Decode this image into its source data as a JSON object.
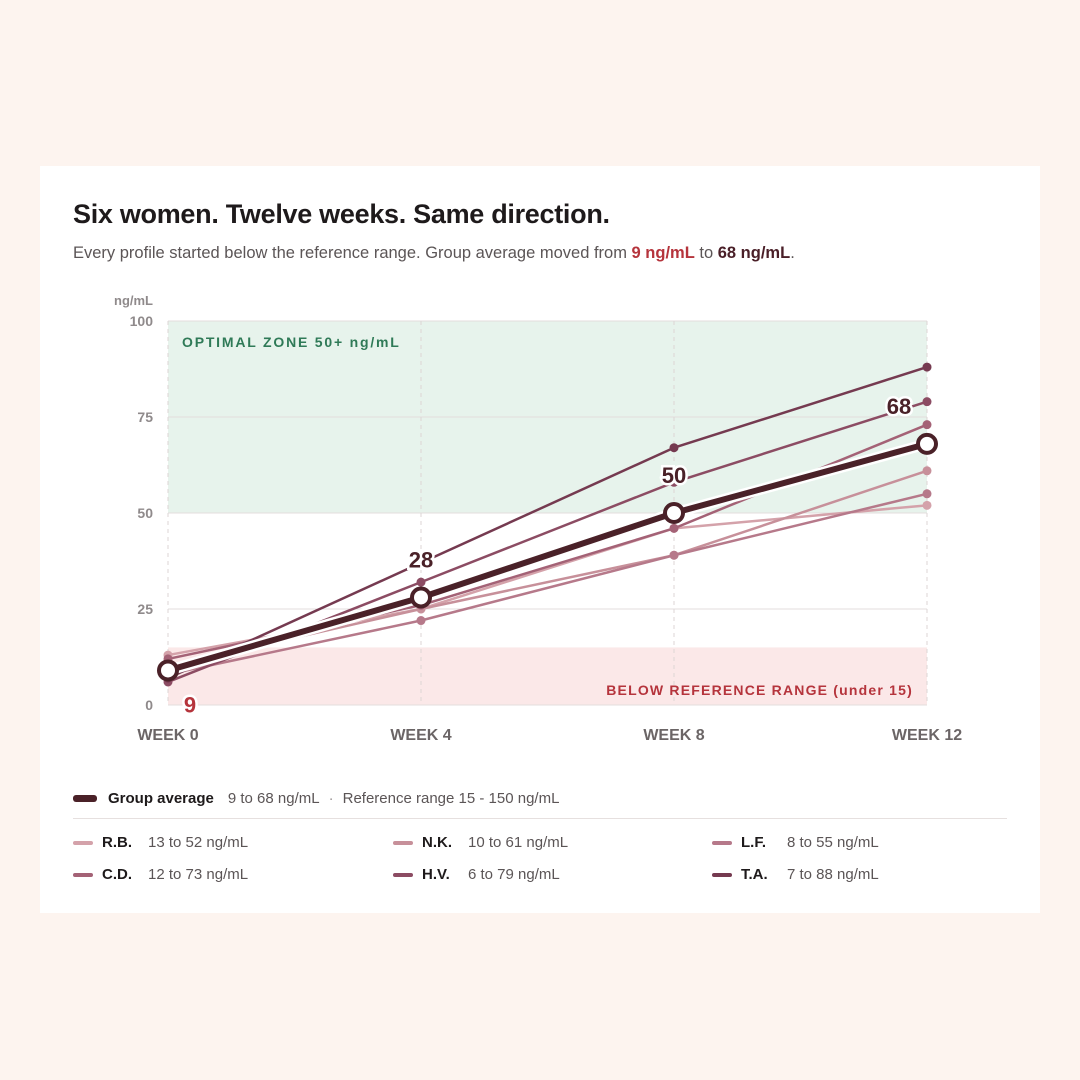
{
  "header": {
    "title": "Six women. Twelve weeks. Same direction.",
    "subtitle_pre": "Every profile started below the reference range. Group average moved from ",
    "subtitle_start": "9 ng/mL",
    "subtitle_mid": " to ",
    "subtitle_end": "68 ng/mL",
    "subtitle_post": "."
  },
  "colors": {
    "average": "#4a2128",
    "optimal_zone": "#e7f3ec",
    "optimal_text": "#2f7a57",
    "below_zone": "#fbe8e8",
    "below_text": "#b5343c",
    "start_label": "#b5343c"
  },
  "chart_data": {
    "type": "line",
    "ylabel": "ng/mL",
    "ylim": [
      0,
      100
    ],
    "yticks": [
      0,
      25,
      50,
      75,
      100
    ],
    "x": [
      "WEEK 0",
      "WEEK 4",
      "WEEK 8",
      "WEEK 12"
    ],
    "zones": [
      {
        "label": "OPTIMAL ZONE 50+ ng/mL",
        "from": 50,
        "to": 100
      },
      {
        "label": "BELOW REFERENCE RANGE (under 15)",
        "from": 0,
        "to": 15
      }
    ],
    "series": [
      {
        "name": "R.B.",
        "values": [
          13,
          25,
          46,
          52
        ],
        "color": "#d4a2aa",
        "range": "13 to 52 ng/mL"
      },
      {
        "name": "N.K.",
        "values": [
          10,
          25,
          39,
          61
        ],
        "color": "#c7909a",
        "range": "10 to 61 ng/mL"
      },
      {
        "name": "L.F.",
        "values": [
          8,
          22,
          39,
          55
        ],
        "color": "#b6798a",
        "range": "8 to 55 ng/mL"
      },
      {
        "name": "C.D.",
        "values": [
          12,
          26,
          46,
          73
        ],
        "color": "#a46276",
        "range": "12 to 73 ng/mL"
      },
      {
        "name": "H.V.",
        "values": [
          6,
          32,
          58,
          79
        ],
        "color": "#8c4c63",
        "range": "6 to 79 ng/mL"
      },
      {
        "name": "T.A.",
        "values": [
          7,
          37,
          67,
          88
        ],
        "color": "#753a50",
        "range": "7 to 88 ng/mL"
      }
    ],
    "average": {
      "name": "Group average",
      "values": [
        9,
        28,
        50,
        68
      ],
      "labels": [
        "9",
        "28",
        "50",
        "68"
      ],
      "range": "9 to 68 ng/mL"
    }
  },
  "legend": {
    "average_label": "Group average",
    "average_range": "9 to 68 ng/mL",
    "separator": "·",
    "reference": "Reference range 15 - 150 ng/mL"
  }
}
